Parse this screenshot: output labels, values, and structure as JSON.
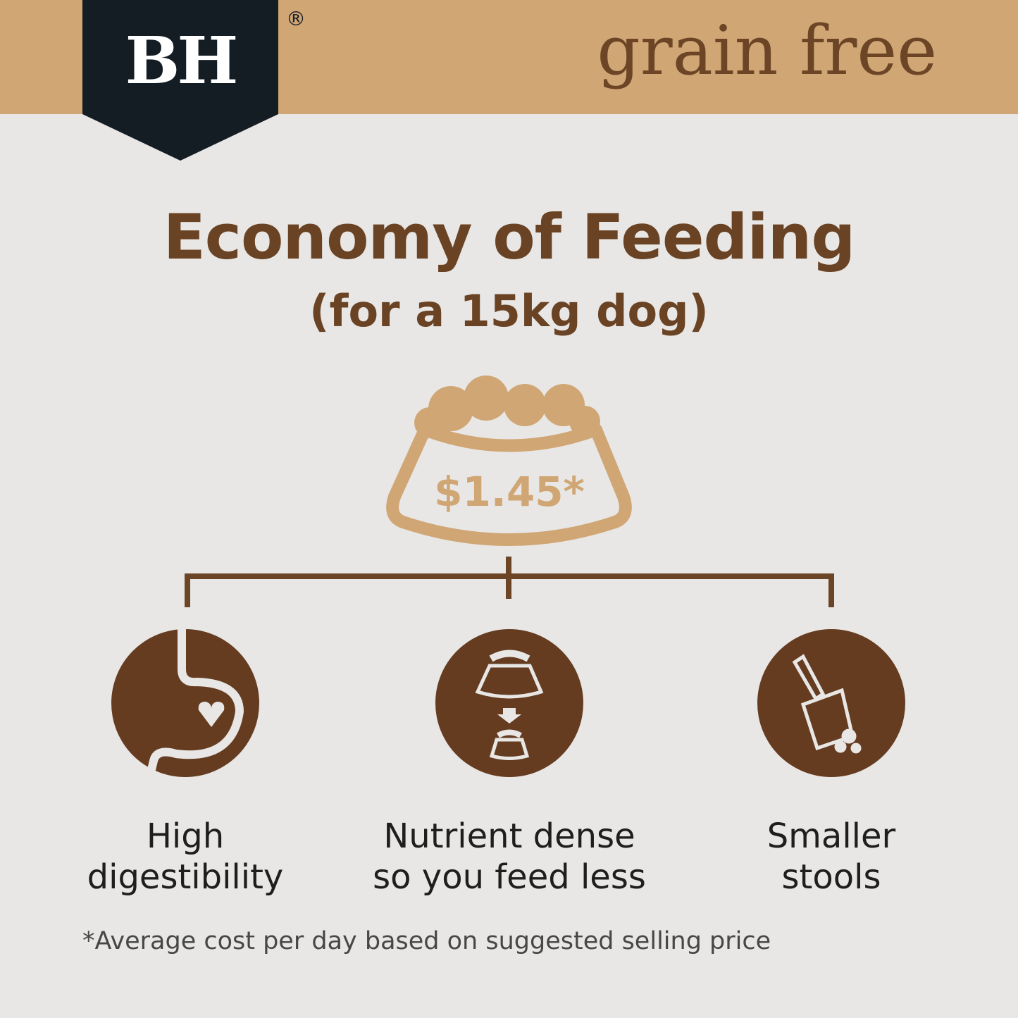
{
  "header": {
    "brand": "BH",
    "registered": "®",
    "tagline": "grain free"
  },
  "title": "Economy of Feeding",
  "subtitle": "(for a 15kg dog)",
  "price": "$1.45*",
  "benefits": [
    {
      "icon": "stomach-heart-icon",
      "label_lines": [
        "High",
        "digestibility"
      ]
    },
    {
      "icon": "bowl-reduction-icon",
      "label_lines": [
        "Nutrient dense",
        "so you feed less"
      ]
    },
    {
      "icon": "scooper-icon",
      "label_lines": [
        "Smaller",
        "stools"
      ]
    }
  ],
  "footnote": "*Average cost per day based on suggested selling price",
  "colors": {
    "band": "#d1a675",
    "badge": "#141c24",
    "brown": "#653c20",
    "background": "#e8e7e5"
  }
}
